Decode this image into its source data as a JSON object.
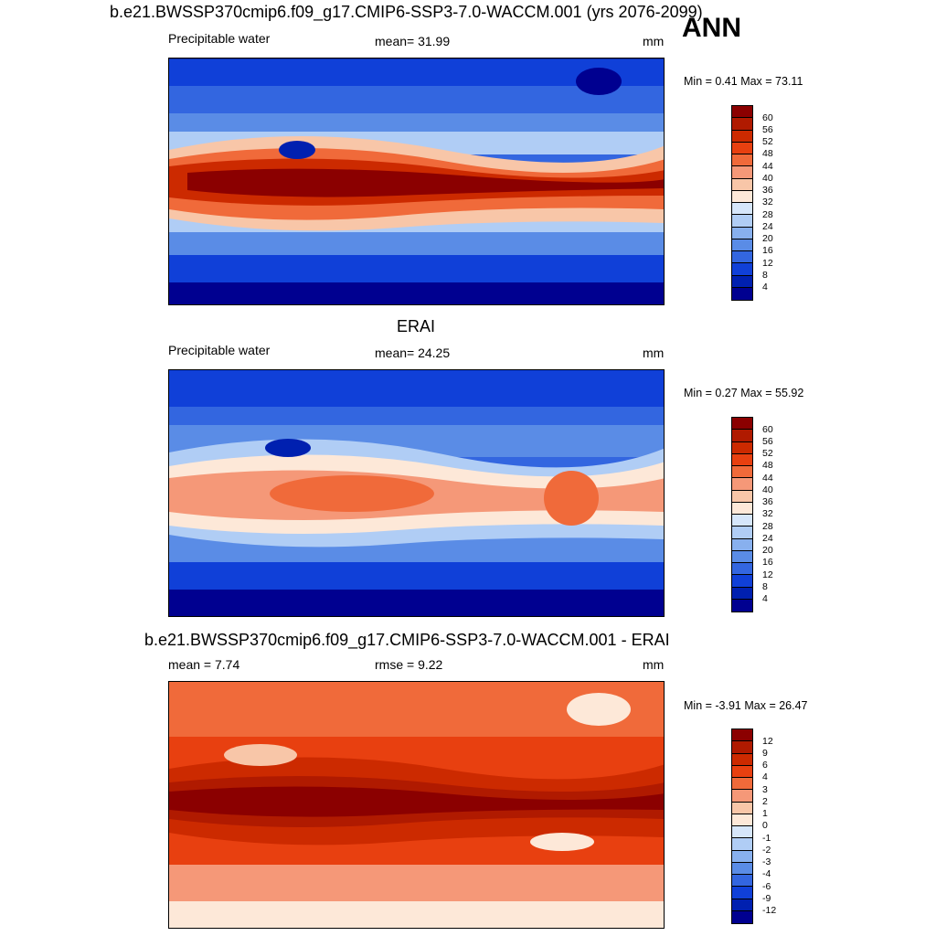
{
  "header": {
    "case_title": "b.e21.BWSSP370cmip6.f09_g17.CMIP6-SSP3-7.0-WACCM.001 (yrs 2076-2099)",
    "season": "ANN"
  },
  "panels": [
    {
      "title": "",
      "variable": "Precipitable water",
      "stat_text": "mean=  31.99",
      "units": "mm",
      "min_max": "Min =   0.41 Max =  73.11",
      "scale": "abs",
      "colorbar_labels": [
        "60",
        "56",
        "52",
        "48",
        "44",
        "40",
        "36",
        "32",
        "28",
        "24",
        "20",
        "16",
        "12",
        "8",
        "4"
      ]
    },
    {
      "title": "ERAI",
      "variable": "Precipitable water",
      "stat_text": "mean=  24.25",
      "units": "mm",
      "min_max": "Min =   0.27 Max =  55.92",
      "scale": "abs",
      "colorbar_labels": [
        "60",
        "56",
        "52",
        "48",
        "44",
        "40",
        "36",
        "32",
        "28",
        "24",
        "20",
        "16",
        "12",
        "8",
        "4"
      ]
    },
    {
      "title": "b.e21.BWSSP370cmip6.f09_g17.CMIP6-SSP3-7.0-WACCM.001 - ERAI",
      "variable": "mean =   7.74",
      "stat_text": "rmse =   9.22",
      "units": "mm",
      "min_max": "Min =  -3.91 Max =  26.47",
      "scale": "diff",
      "colorbar_labels": [
        "12",
        "9",
        "6",
        "4",
        "3",
        "2",
        "1",
        "0",
        "-1",
        "-2",
        "-3",
        "-4",
        "-6",
        "-9",
        "-12"
      ]
    }
  ],
  "colors": {
    "abs": [
      "#8b0000",
      "#b01a00",
      "#cc2a00",
      "#e84010",
      "#f06a3a",
      "#f59878",
      "#f8c6a8",
      "#fde8d8",
      "#d6e6fa",
      "#b0cdf5",
      "#88b0ee",
      "#5a8ce6",
      "#3366e0",
      "#1040d8",
      "#0020b0",
      "#000090"
    ],
    "diff": [
      "#8b0000",
      "#b01a00",
      "#cc2a00",
      "#e84010",
      "#f06a3a",
      "#f59878",
      "#f8c6a8",
      "#fde8d8",
      "#d6e6fa",
      "#b0cdf5",
      "#88b0ee",
      "#5a8ce6",
      "#3366e0",
      "#1040d8",
      "#0020b0",
      "#000090"
    ]
  }
}
